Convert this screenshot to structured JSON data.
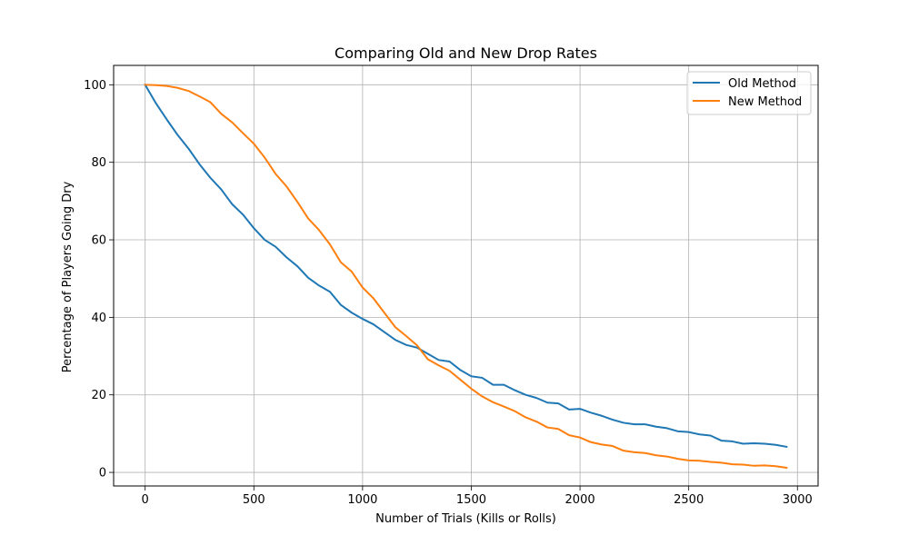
{
  "chart_data": {
    "type": "line",
    "title": "Comparing Old and New Drop Rates",
    "xlabel": "Number of Trials (Kills or Rolls)",
    "ylabel": "Percentage of Players Going Dry",
    "xlim": [
      -145,
      3095
    ],
    "ylim": [
      -3.5,
      105
    ],
    "xticks": [
      0,
      500,
      1000,
      1500,
      2000,
      2500,
      3000
    ],
    "yticks": [
      0,
      20,
      40,
      60,
      80,
      100
    ],
    "grid": true,
    "legend_position": "top-right",
    "x": [
      0,
      50,
      100,
      150,
      200,
      250,
      300,
      350,
      400,
      450,
      500,
      550,
      600,
      650,
      700,
      750,
      800,
      850,
      900,
      950,
      1000,
      1050,
      1100,
      1150,
      1200,
      1250,
      1300,
      1350,
      1400,
      1450,
      1500,
      1550,
      1600,
      1650,
      1700,
      1750,
      1800,
      1850,
      1900,
      1950,
      2000,
      2050,
      2100,
      2150,
      2200,
      2250,
      2300,
      2350,
      2400,
      2450,
      2500,
      2550,
      2600,
      2650,
      2700,
      2750,
      2800,
      2850,
      2900,
      2950
    ],
    "series": [
      {
        "name": "Old Method",
        "color": "#1f77b4",
        "values": [
          100,
          95.2,
          91.0,
          87.0,
          83.5,
          79.5,
          76.0,
          73.0,
          69.2,
          66.5,
          63.0,
          60.0,
          58.2,
          55.5,
          53.2,
          50.2,
          48.2,
          46.6,
          43.2,
          41.2,
          39.6,
          38.2,
          36.2,
          34.2,
          32.9,
          32.2,
          30.6,
          29.0,
          28.6,
          26.4,
          24.8,
          24.4,
          22.6,
          22.6,
          21.2,
          20.0,
          19.2,
          18.0,
          17.8,
          16.2,
          16.4,
          15.4,
          14.6,
          13.6,
          12.8,
          12.4,
          12.4,
          11.8,
          11.4,
          10.6,
          10.4,
          9.8,
          9.5,
          8.2,
          8.0,
          7.4,
          7.5,
          7.4,
          7.1,
          6.6
        ]
      },
      {
        "name": "New Method",
        "color": "#ff7f0e",
        "values": [
          100,
          99.9,
          99.7,
          99.2,
          98.4,
          97.0,
          95.5,
          92.5,
          90.3,
          87.5,
          84.8,
          81.2,
          77.0,
          73.8,
          69.8,
          65.5,
          62.5,
          58.8,
          54.2,
          51.8,
          47.7,
          44.9,
          41.2,
          37.5,
          35.2,
          32.8,
          29.2,
          27.6,
          26.2,
          23.9,
          21.6,
          19.6,
          18.1,
          17.0,
          15.8,
          14.2,
          13.1,
          11.6,
          11.2,
          9.6,
          9.0,
          7.8,
          7.2,
          6.8,
          5.6,
          5.2,
          5.0,
          4.4,
          4.1,
          3.5,
          3.1,
          3.0,
          2.7,
          2.5,
          2.1,
          2.0,
          1.7,
          1.8,
          1.6,
          1.2
        ]
      }
    ]
  }
}
